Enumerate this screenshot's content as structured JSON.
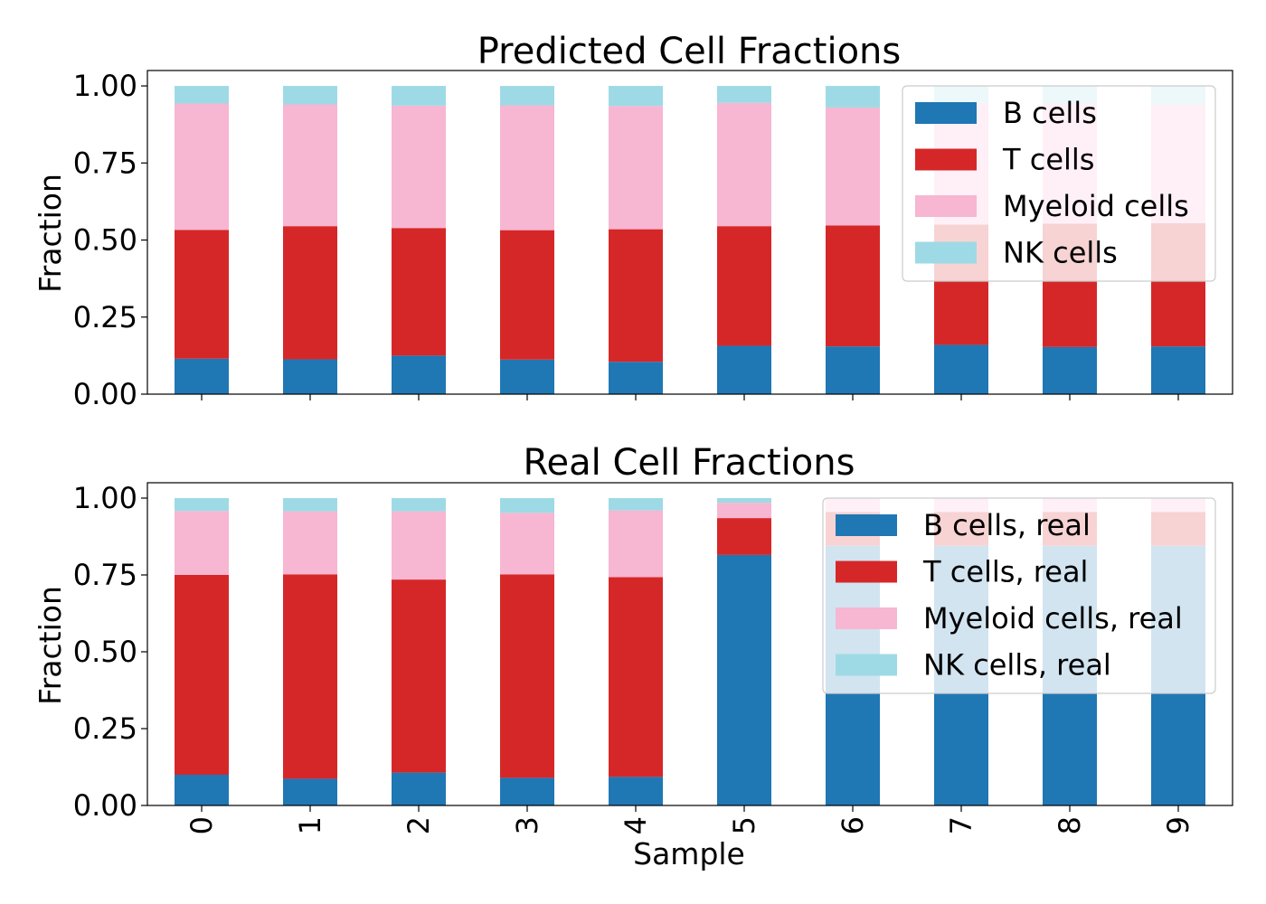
{
  "colors": {
    "b_cells": "#1f77b4",
    "t_cells": "#d62728",
    "myeloid_cells": "#f7b6d2",
    "nk_cells": "#9edae5"
  },
  "chart_data": [
    {
      "type": "bar",
      "stacked": true,
      "title": "Predicted Cell Fractions",
      "xlabel": "",
      "ylabel": "Fraction",
      "categories": [
        "0",
        "1",
        "2",
        "3",
        "4",
        "5",
        "6",
        "7",
        "8",
        "9"
      ],
      "ylim": [
        0,
        1.05
      ],
      "yticks": [
        "0.00",
        "0.25",
        "0.50",
        "0.75",
        "1.00"
      ],
      "legend_position": "top-right",
      "grid": false,
      "series": [
        {
          "name": "B cells",
          "color_key": "b_cells",
          "values": [
            0.115,
            0.113,
            0.125,
            0.112,
            0.105,
            0.157,
            0.155,
            0.16,
            0.153,
            0.155
          ]
        },
        {
          "name": "T cells",
          "color_key": "t_cells",
          "values": [
            0.418,
            0.432,
            0.414,
            0.42,
            0.43,
            0.388,
            0.392,
            0.39,
            0.4,
            0.4
          ]
        },
        {
          "name": "Myeloid cells",
          "color_key": "myeloid_cells",
          "values": [
            0.41,
            0.395,
            0.397,
            0.405,
            0.4,
            0.4,
            0.383,
            0.395,
            0.39,
            0.385
          ]
        },
        {
          "name": "NK cells",
          "color_key": "nk_cells",
          "values": [
            0.057,
            0.06,
            0.064,
            0.063,
            0.065,
            0.055,
            0.07,
            0.055,
            0.057,
            0.06
          ]
        }
      ]
    },
    {
      "type": "bar",
      "stacked": true,
      "title": "Real Cell Fractions",
      "xlabel": "Sample",
      "ylabel": "Fraction",
      "categories": [
        "0",
        "1",
        "2",
        "3",
        "4",
        "5",
        "6",
        "7",
        "8",
        "9"
      ],
      "ylim": [
        0,
        1.05
      ],
      "yticks": [
        "0.00",
        "0.25",
        "0.50",
        "0.75",
        "1.00"
      ],
      "legend_position": "top-right",
      "grid": false,
      "series": [
        {
          "name": "B cells, real",
          "color_key": "b_cells",
          "values": [
            0.1,
            0.087,
            0.107,
            0.09,
            0.093,
            0.815,
            0.845,
            0.845,
            0.845,
            0.845
          ]
        },
        {
          "name": "T cells, real",
          "color_key": "t_cells",
          "values": [
            0.65,
            0.665,
            0.628,
            0.662,
            0.65,
            0.12,
            0.11,
            0.11,
            0.11,
            0.11
          ]
        },
        {
          "name": "Myeloid cells, real",
          "color_key": "myeloid_cells",
          "values": [
            0.208,
            0.205,
            0.222,
            0.2,
            0.217,
            0.05,
            0.045,
            0.045,
            0.045,
            0.045
          ]
        },
        {
          "name": "NK cells, real",
          "color_key": "nk_cells",
          "values": [
            0.042,
            0.043,
            0.043,
            0.048,
            0.04,
            0.015,
            0.0,
            0.0,
            0.0,
            0.0
          ]
        }
      ]
    }
  ]
}
